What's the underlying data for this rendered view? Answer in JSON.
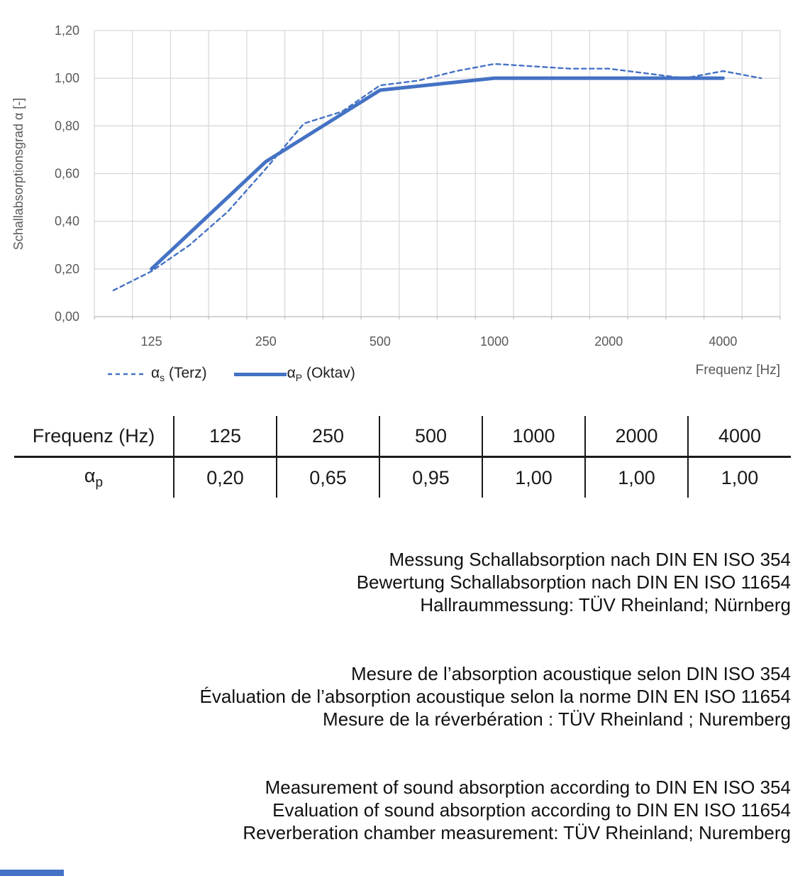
{
  "chart": {
    "y_axis_title": "Schallabsorptionsgrad α [-]",
    "x_axis_title": "Frequenz [Hz]",
    "y_ticks": [
      "0,00",
      "0,20",
      "0,40",
      "0,60",
      "0,80",
      "1,00",
      "1,20"
    ],
    "x_ticks": [
      {
        "freq": 125,
        "label": "125"
      },
      {
        "freq": 250,
        "label": "250"
      },
      {
        "freq": 500,
        "label": "500"
      },
      {
        "freq": 1000,
        "label": "1000"
      },
      {
        "freq": 2000,
        "label": "2000"
      },
      {
        "freq": 4000,
        "label": "4000"
      }
    ],
    "legend": {
      "terz_alpha": "α",
      "terz_sub": "s",
      "terz_rest": "(Terz)",
      "oktav_alpha": "α",
      "oktav_sub": "P",
      "oktav_rest": "(Oktav)"
    },
    "line_color": "#4472C4",
    "grid_color": "#D9D9D9",
    "axis_line_color": "#BFBFBF",
    "axis_text_color": "#595959"
  },
  "chart_data": {
    "type": "line",
    "x_scale": "logarithmic-third-octave",
    "title": "",
    "xlabel": "Frequenz [Hz]",
    "ylabel": "Schallabsorptionsgrad α [-]",
    "ylim": [
      0,
      1.2
    ],
    "grid": true,
    "legend_position": "bottom-left",
    "categories_third_octave": [
      100,
      125,
      160,
      200,
      250,
      315,
      400,
      500,
      630,
      800,
      1000,
      1250,
      1600,
      2000,
      2500,
      3150,
      4000,
      5000
    ],
    "series": [
      {
        "name": "αs (Terz)",
        "style": "dashed",
        "x": [
          100,
          125,
          160,
          200,
          250,
          315,
          400,
          500,
          630,
          800,
          1000,
          1250,
          1600,
          2000,
          2500,
          3150,
          4000,
          5000
        ],
        "values": [
          0.11,
          0.19,
          0.3,
          0.44,
          0.62,
          0.81,
          0.86,
          0.97,
          0.99,
          1.03,
          1.06,
          1.05,
          1.04,
          1.04,
          1.02,
          1.0,
          1.03,
          1.0
        ]
      },
      {
        "name": "αP (Oktav)",
        "style": "solid",
        "x": [
          125,
          250,
          500,
          1000,
          2000,
          4000
        ],
        "values": [
          0.2,
          0.65,
          0.95,
          1.0,
          1.0,
          1.0
        ]
      }
    ]
  },
  "table": {
    "header": [
      "Frequenz (Hz)",
      "125",
      "250",
      "500",
      "1000",
      "2000",
      "4000"
    ],
    "row_label_alpha": "α",
    "row_label_sub": "p",
    "values": [
      "0,20",
      "0,65",
      "0,95",
      "1,00",
      "1,00",
      "1,00"
    ]
  },
  "notes": {
    "german": [
      "Messung Schallabsorption nach DIN EN ISO 354",
      "Bewertung Schallabsorption nach DIN EN ISO 11654",
      "Hallraummessung: TÜV Rheinland; Nürnberg"
    ],
    "french": [
      "Mesure de l’absorption acoustique selon DIN ISO 354",
      "Évaluation de l’absorption acoustique selon la norme DIN EN ISO 11654",
      "Mesure de la réverbération : TÜV Rheinland ; Nuremberg"
    ],
    "english": [
      "Measurement of sound absorption according to DIN EN ISO 354",
      "Evaluation of sound absorption according to DIN EN ISO 11654",
      "Reverberation chamber measurement: TÜV Rheinland; Nuremberg"
    ]
  },
  "footer": {
    "accent_color": "#4472C4"
  }
}
